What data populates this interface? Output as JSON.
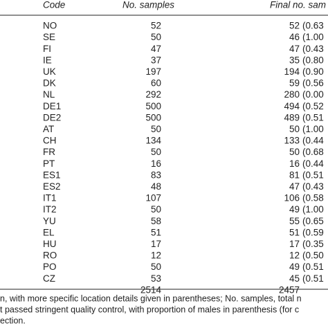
{
  "table": {
    "header": [
      "Code",
      "No. samples",
      "Final no. sam"
    ],
    "rows": [
      [
        "NO",
        52,
        52,
        "(0.63"
      ],
      [
        "SE",
        50,
        46,
        "(1.00"
      ],
      [
        "FI",
        47,
        47,
        "(0.43"
      ],
      [
        "IE",
        37,
        35,
        "(0.80"
      ],
      [
        "UK",
        197,
        194,
        "(0.90"
      ],
      [
        "DK",
        60,
        59,
        "(0.56"
      ],
      [
        "NL",
        292,
        280,
        "(0.00"
      ],
      [
        "DE1",
        500,
        494,
        "(0.52"
      ],
      [
        "DE2",
        500,
        489,
        "(0.51"
      ],
      [
        "AT",
        50,
        50,
        "(1.00"
      ],
      [
        "CH",
        134,
        133,
        "(0.44"
      ],
      [
        "FR",
        50,
        50,
        "(0.68"
      ],
      [
        "PT",
        16,
        16,
        "(0.44"
      ],
      [
        "ES1",
        83,
        81,
        "(0.51"
      ],
      [
        "ES2",
        48,
        47,
        "(0.43"
      ],
      [
        "IT1",
        107,
        106,
        "(0.58"
      ],
      [
        "IT2",
        50,
        49,
        "(1.00"
      ],
      [
        "YU",
        58,
        55,
        "(0.65"
      ],
      [
        "EL",
        51,
        51,
        "(0.59"
      ],
      [
        "HU",
        17,
        17,
        "(0.35"
      ],
      [
        "RO",
        12,
        12,
        "(0.50"
      ],
      [
        "PO",
        50,
        49,
        "(0.51"
      ],
      [
        "CZ",
        53,
        45,
        "(0.51"
      ]
    ],
    "total": [
      2514,
      2457
    ],
    "footnote": [
      "n, with more specific location details given in parentheses; No. samples, total n",
      "t passed stringent quality control, with proportion of males in parenthesis (for c",
      "ection."
    ]
  }
}
